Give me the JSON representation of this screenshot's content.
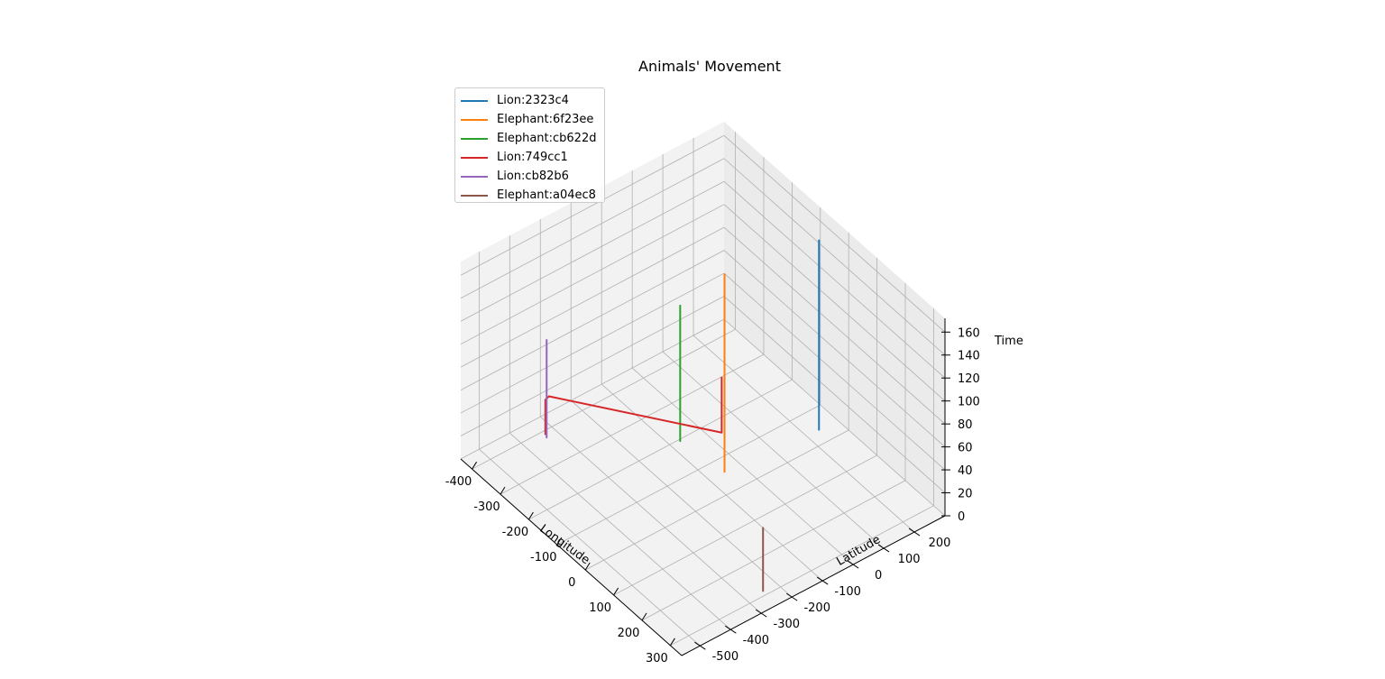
{
  "chart_data": {
    "type": "line",
    "projection": "3d",
    "title": "Animals' Movement",
    "xlabel": "Longitude",
    "ylabel": "Latitude",
    "zlabel": "Time",
    "xlim": [
      -440,
      340
    ],
    "ylim": [
      -560,
      300
    ],
    "zlim": [
      0,
      172
    ],
    "xticks": [
      -400,
      -300,
      -200,
      -100,
      0,
      100,
      200,
      300
    ],
    "yticks": [
      -500,
      -400,
      -300,
      -200,
      -100,
      0,
      100,
      200
    ],
    "zticks": [
      0,
      20,
      40,
      60,
      80,
      100,
      120,
      140,
      160
    ],
    "grid": true,
    "legend_position": "top-left",
    "series": [
      {
        "name": "Lion:2323c4",
        "color": "#1f77b4",
        "x": [
          -40,
          -40
        ],
        "y": [
          240,
          240
        ],
        "z": [
          0,
          165
        ]
      },
      {
        "name": "Elephant:6f23ee",
        "color": "#ff7f0e",
        "x": [
          -60,
          -60
        ],
        "y": [
          -50,
          -50
        ],
        "z": [
          0,
          172
        ]
      },
      {
        "name": "Elephant:cb622d",
        "color": "#2ca02c",
        "x": [
          -195,
          -195,
          -195
        ],
        "y": [
          -70,
          -70,
          -70
        ],
        "z": [
          0,
          108,
          118
        ]
      },
      {
        "name": "Lion:749cc1",
        "color": "#d62728",
        "x": [
          -390,
          -390,
          -388,
          -70,
          -70
        ],
        "y": [
          -330,
          -330,
          -320,
          -50,
          -50
        ],
        "z": [
          0,
          30,
          32,
          32,
          80
        ]
      },
      {
        "name": "Lion:cb82b6",
        "color": "#9467bd",
        "x": [
          -380,
          -380
        ],
        "y": [
          -335,
          -335
        ],
        "z": [
          0,
          85
        ]
      },
      {
        "name": "Elephant:a04ec8",
        "color": "#8c564b",
        "x": [
          130,
          130
        ],
        "y": [
          -100,
          -100
        ],
        "z": [
          -55,
          0
        ]
      }
    ]
  }
}
